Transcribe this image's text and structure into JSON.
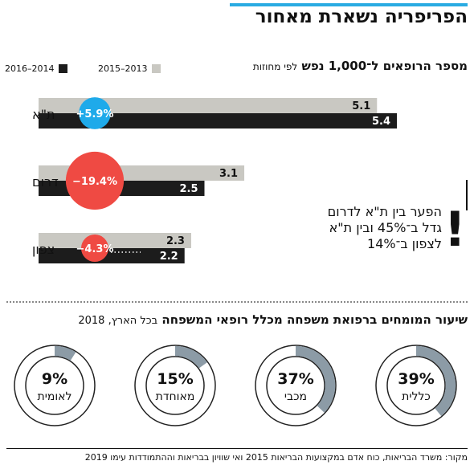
{
  "title": "הפריפריה נשארת מאחור",
  "chart_data": [
    {
      "type": "bar",
      "title": "מספר הרופאים ל־1,000 נפש",
      "title_note": "לפי מחוזות",
      "orientation": "horizontal",
      "categories": [
        "ת\"א",
        "דרום",
        "צפון"
      ],
      "series": [
        {
          "name": "2015–2013",
          "color": "#c9c8c2",
          "values": [
            5.1,
            3.1,
            2.3
          ]
        },
        {
          "name": "2016–2014",
          "color": "#1c1c1c",
          "values": [
            5.4,
            2.5,
            2.2
          ]
        }
      ],
      "value_labels": [
        [
          "5.1",
          "5.4"
        ],
        [
          "3.1",
          "2.5"
        ],
        [
          "2.3",
          "2.2"
        ]
      ],
      "change_labels": [
        "+5.9%",
        "−19.4%",
        "−4.3%"
      ],
      "change_colors": [
        "#1eaaea",
        "#ef4a43",
        "#ef4a43"
      ],
      "change_values": [
        5.9,
        -19.4,
        -4.3
      ],
      "xlim": [
        0,
        5.4
      ]
    },
    {
      "type": "pie",
      "title": "שיעור המומחים ברפואת משפחה מכלל רופאי המשפחה",
      "title_note": "בכל הארץ, 2018",
      "categories": [
        "כללית",
        "מכבי",
        "מאוחדת",
        "לאומית"
      ],
      "values": [
        39,
        37,
        15,
        9
      ],
      "labels": [
        "39%",
        "37%",
        "15%",
        "9%"
      ],
      "colors": {
        "share": "#8c9ba6",
        "rest": "#ffffff"
      }
    }
  ],
  "note": {
    "lines": [
      "הפער בין ת\"א לדרום",
      "גדל ב־45% ובין ת\"א",
      "לצפון ב־14%"
    ],
    "mark": "!"
  },
  "source": "מקור: משרד הבריאות, כוח אדם במקצועות הבריאות 2015 ואי שוויון בבריאות וההתמודדות עימו 2019"
}
